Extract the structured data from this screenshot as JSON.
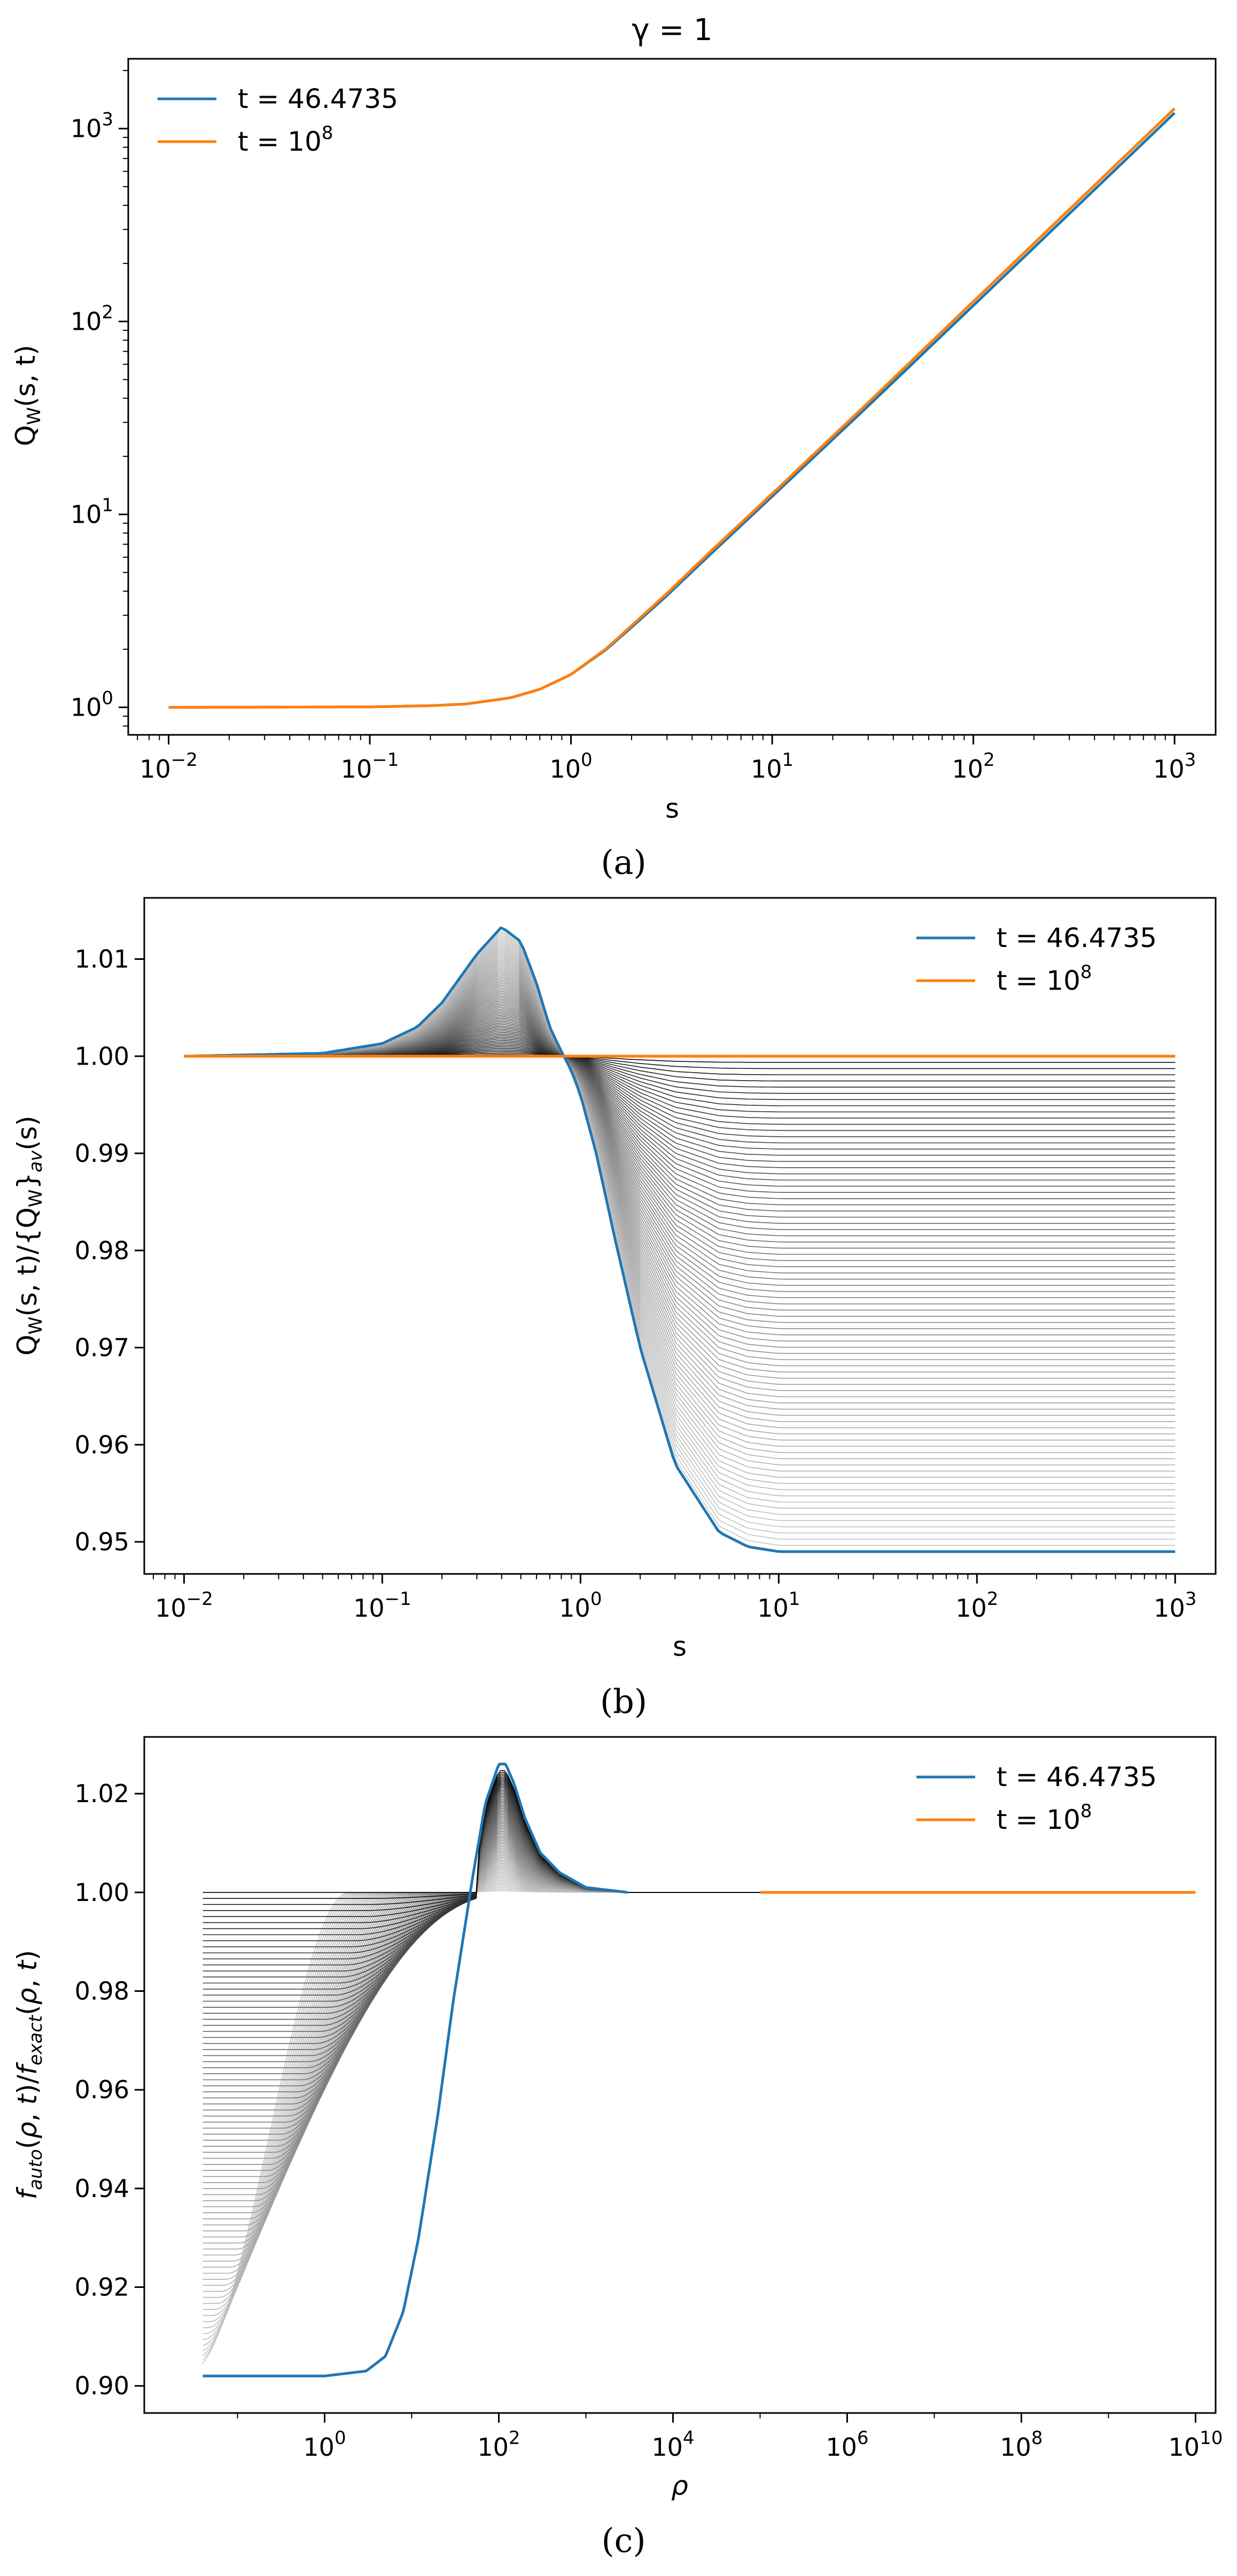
{
  "colors": {
    "blue": "#1f77b4",
    "orange": "#ff7f0e",
    "family_dark": "#000000",
    "family_light": "#c8c8c8"
  },
  "panels": {
    "a": {
      "caption": "(a)"
    },
    "b": {
      "caption": "(b)"
    },
    "c": {
      "caption": "(c)"
    }
  },
  "chart_data": [
    {
      "type": "line",
      "panel": "a",
      "title": "γ = 1",
      "xlabel": "s",
      "ylabel": "Q_W(s, t)",
      "xscale": "log",
      "yscale": "log",
      "xlim": [
        0.0063,
        1600
      ],
      "ylim": [
        0.72,
        2300
      ],
      "xticks": [
        {
          "v": 0.01,
          "base": "10",
          "exp": "−2"
        },
        {
          "v": 0.1,
          "base": "10",
          "exp": "−1"
        },
        {
          "v": 1,
          "base": "10",
          "exp": "0"
        },
        {
          "v": 10,
          "base": "10",
          "exp": "1"
        },
        {
          "v": 100,
          "base": "10",
          "exp": "2"
        },
        {
          "v": 1000,
          "base": "10",
          "exp": "3"
        }
      ],
      "yticks": [
        {
          "v": 1,
          "base": "10",
          "exp": "0"
        },
        {
          "v": 10,
          "base": "10",
          "exp": "1"
        },
        {
          "v": 100,
          "base": "10",
          "exp": "2"
        },
        {
          "v": 1000,
          "base": "10",
          "exp": "3"
        }
      ],
      "legend": {
        "placement": "top-left",
        "entries": [
          {
            "label": "t = 46.4735",
            "base": "",
            "exp": "",
            "color": "blue"
          },
          {
            "label": "t = 10",
            "base": "",
            "exp": "8",
            "color": "orange"
          }
        ]
      },
      "series": [
        {
          "name": "t = 46.4735",
          "color": "blue",
          "x": [
            0.01,
            0.1,
            0.2,
            0.3,
            0.5,
            0.7,
            1,
            1.5,
            2,
            3,
            5,
            10,
            30,
            100,
            300,
            1000
          ],
          "y": [
            1,
            1.005,
            1.02,
            1.04,
            1.12,
            1.24,
            1.48,
            2.0,
            2.6,
            3.8,
            6.3,
            12.4,
            36.5,
            121,
            362,
            1205
          ]
        },
        {
          "name": "t = 10^8",
          "color": "orange",
          "x": [
            0.01,
            0.1,
            0.2,
            0.3,
            0.5,
            0.7,
            1,
            1.5,
            2,
            3,
            5,
            10,
            30,
            100,
            300,
            1000
          ],
          "y": [
            1,
            1.005,
            1.02,
            1.04,
            1.12,
            1.24,
            1.48,
            2.02,
            2.65,
            3.9,
            6.5,
            12.8,
            38,
            127,
            381,
            1270
          ]
        }
      ]
    },
    {
      "type": "line",
      "panel": "b",
      "title": "",
      "xlabel": "s",
      "ylabel": "Q_W(s, t)/{Q_W}_av(s)",
      "xscale": "log",
      "yscale": "linear",
      "xlim": [
        0.0063,
        1600
      ],
      "ylim": [
        0.9467,
        1.0163
      ],
      "xticks": [
        {
          "v": 0.01,
          "base": "10",
          "exp": "−2"
        },
        {
          "v": 0.1,
          "base": "10",
          "exp": "−1"
        },
        {
          "v": 1,
          "base": "10",
          "exp": "0"
        },
        {
          "v": 10,
          "base": "10",
          "exp": "1"
        },
        {
          "v": 100,
          "base": "10",
          "exp": "2"
        },
        {
          "v": 1000,
          "base": "10",
          "exp": "3"
        }
      ],
      "yticks": [
        {
          "v": 0.95,
          "label": "0.95"
        },
        {
          "v": 0.96,
          "label": "0.96"
        },
        {
          "v": 0.97,
          "label": "0.97"
        },
        {
          "v": 0.98,
          "label": "0.98"
        },
        {
          "v": 0.99,
          "label": "0.99"
        },
        {
          "v": 1.0,
          "label": "1.00"
        },
        {
          "v": 1.01,
          "label": "1.01"
        }
      ],
      "legend": {
        "placement": "top-right",
        "entries": [
          {
            "label": "t = 46.4735",
            "base": "",
            "exp": "",
            "color": "blue"
          },
          {
            "label": "t = 10",
            "base": "",
            "exp": "8",
            "color": "orange"
          }
        ]
      },
      "family_count": 80,
      "series": [
        {
          "name": "t = 46.4735",
          "color": "blue",
          "x": [
            0.01,
            0.05,
            0.1,
            0.15,
            0.2,
            0.3,
            0.4,
            0.5,
            0.6,
            0.7,
            0.8,
            0.9,
            1.0,
            1.2,
            1.5,
            2,
            3,
            5,
            7,
            10,
            20,
            100,
            1000
          ],
          "y": [
            1.0,
            1.0003,
            1.0013,
            1.003,
            1.0055,
            1.0105,
            1.0133,
            1.0118,
            1.0075,
            1.003,
            1.0005,
            0.9985,
            0.996,
            0.99,
            0.981,
            0.97,
            0.958,
            0.951,
            0.9495,
            0.949,
            0.949,
            0.949,
            0.949
          ]
        },
        {
          "name": "t = 10^8",
          "color": "orange",
          "x": [
            0.01,
            1000
          ],
          "y": [
            1.0,
            1.0
          ]
        }
      ]
    },
    {
      "type": "line",
      "panel": "c",
      "title": "",
      "xlabel": "ρ",
      "ylabel": "f_auto(ρ, t)/f_exact(ρ, t)",
      "xscale": "log",
      "yscale": "linear",
      "xlim": [
        0.0085,
        17000000000.0
      ],
      "ylim": [
        0.8945,
        1.0315
      ],
      "xticks": [
        {
          "v": 1,
          "base": "10",
          "exp": "0"
        },
        {
          "v": 100,
          "base": "10",
          "exp": "2"
        },
        {
          "v": 10000,
          "base": "10",
          "exp": "4"
        },
        {
          "v": 1000000,
          "base": "10",
          "exp": "6"
        },
        {
          "v": 100000000,
          "base": "10",
          "exp": "8"
        },
        {
          "v": 10000000000,
          "base": "10",
          "exp": "10"
        }
      ],
      "yticks": [
        {
          "v": 0.9,
          "label": "0.90"
        },
        {
          "v": 0.92,
          "label": "0.92"
        },
        {
          "v": 0.94,
          "label": "0.94"
        },
        {
          "v": 0.96,
          "label": "0.96"
        },
        {
          "v": 0.98,
          "label": "0.98"
        },
        {
          "v": 1.0,
          "label": "1.00"
        },
        {
          "v": 1.02,
          "label": "1.02"
        }
      ],
      "legend": {
        "placement": "top-right",
        "entries": [
          {
            "label": "t = 46.4735",
            "base": "",
            "exp": "",
            "color": "blue"
          },
          {
            "label": "t = 10",
            "base": "",
            "exp": "8",
            "color": "orange"
          }
        ]
      },
      "family_count": 80,
      "series": [
        {
          "name": "t = 46.4735",
          "color": "blue",
          "x": [
            0.04,
            1,
            3,
            5,
            8,
            12,
            20,
            30,
            40,
            50,
            70,
            100,
            120,
            150,
            200,
            300,
            500,
            1000,
            3000
          ],
          "y": [
            0.902,
            0.902,
            0.903,
            0.906,
            0.915,
            0.93,
            0.955,
            0.978,
            0.992,
            1.003,
            1.018,
            1.026,
            1.026,
            1.022,
            1.015,
            1.008,
            1.004,
            1.001,
            1.0
          ]
        },
        {
          "name": "t = 10^8",
          "color": "orange",
          "x": [
            100000,
            10000000000
          ],
          "y": [
            1.0,
            1.0
          ]
        }
      ]
    }
  ]
}
